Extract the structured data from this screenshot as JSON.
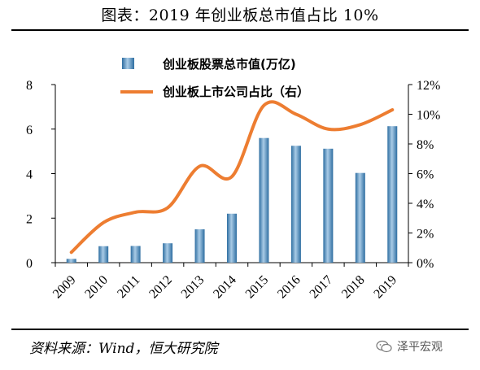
{
  "header": {
    "title": "图表：2019 年创业板总市值占比 10%"
  },
  "footer": {
    "source": "资料来源：Wind，恒大研究院",
    "watermark": "泽平宏观"
  },
  "chart_data": {
    "type": "bar",
    "categories": [
      "2009",
      "2010",
      "2011",
      "2012",
      "2013",
      "2014",
      "2015",
      "2016",
      "2017",
      "2018",
      "2019"
    ],
    "series": [
      {
        "name": "创业板股票总市值(万亿)",
        "type": "bar",
        "axis": "left",
        "values": [
          0.17,
          0.74,
          0.75,
          0.87,
          1.5,
          2.2,
          5.6,
          5.25,
          5.12,
          4.03,
          6.13
        ]
      },
      {
        "name": "创业板上市公司占比（右）",
        "type": "line",
        "axis": "right",
        "values": [
          0.7,
          2.7,
          3.4,
          3.7,
          6.5,
          5.8,
          10.6,
          10.0,
          9.0,
          9.3,
          10.3
        ]
      }
    ],
    "y_left": {
      "ylim": [
        0,
        8
      ],
      "ticks": [
        "0",
        "2",
        "4",
        "6",
        "8"
      ]
    },
    "y_right": {
      "ylim": [
        0,
        12
      ],
      "ticks": [
        "0%",
        "2%",
        "4%",
        "6%",
        "8%",
        "10%",
        "12%"
      ]
    },
    "legend_placement": "top-center",
    "grid": false,
    "colors": {
      "bar_dark": "#2e6ea1",
      "bar_light": "#a9cbe6",
      "line": "#ed7d31"
    }
  }
}
